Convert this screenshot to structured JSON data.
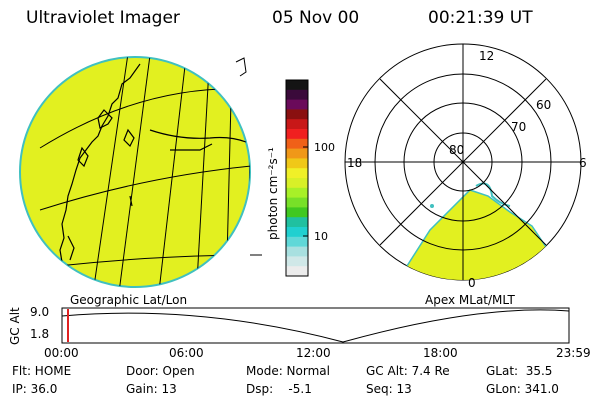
{
  "header": {
    "instrument": "Ultraviolet Imager",
    "date": "05 Nov 00",
    "time": "00:21:39 UT"
  },
  "colorbar": {
    "unit_label": "photon cm⁻²s⁻¹",
    "ticks": [
      "100",
      "10"
    ],
    "colors": [
      "#141414",
      "#3a0a3a",
      "#6a0a5a",
      "#8a1010",
      "#c81818",
      "#f02020",
      "#f06018",
      "#f09818",
      "#f0c818",
      "#f0f028",
      "#d8f028",
      "#a8f028",
      "#78e028",
      "#40c820",
      "#20c0a0",
      "#20d0d0",
      "#60d8d8",
      "#a8e0e0",
      "#d0e8e8",
      "#ececec"
    ]
  },
  "left_panel": {
    "label": "Geographic Lat/Lon",
    "fill": "#e0f020"
  },
  "right_panel": {
    "label": "Apex MLat/MLT",
    "lat_labels": [
      "80",
      "70",
      "60"
    ],
    "mlt_labels": {
      "top": "12",
      "left": "18",
      "right": "6",
      "bottom": "0"
    }
  },
  "timeline": {
    "y_label": "GC Alt",
    "y_ticks": [
      "9.0",
      "1.8"
    ],
    "x_ticks": [
      "00:00",
      "06:00",
      "12:00",
      "18:00",
      "23:59"
    ],
    "marker_color": "#e02020"
  },
  "info": {
    "row1": {
      "flt": "Flt: HOME",
      "door": "Door: Open",
      "mode": "Mode: Normal",
      "gcalt": "GC Alt: 7.4 Re",
      "glat": "GLat:  35.5"
    },
    "row2": {
      "ip": "IP: 36.0",
      "gain": "Gain: 13",
      "dsp": "Dsp:    -5.1",
      "seq": "Seq: 13",
      "glon": "GLon: 341.0"
    }
  }
}
